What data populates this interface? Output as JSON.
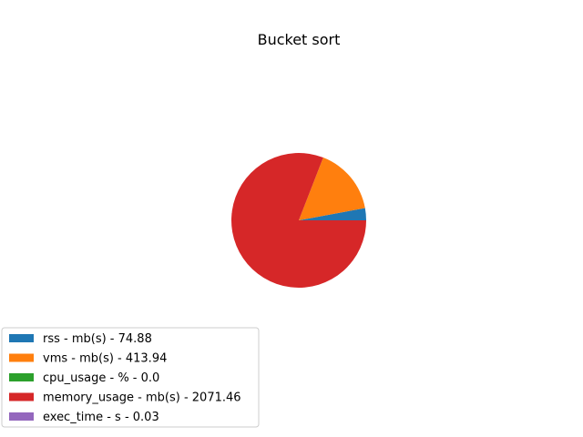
{
  "chart_data": {
    "type": "pie",
    "title": "Bucket sort",
    "slices": [
      {
        "label": "rss - mb(s) - 74.88",
        "value": 74.88,
        "color": "#1f77b4"
      },
      {
        "label": "vms - mb(s) - 413.94",
        "value": 413.94,
        "color": "#ff7f0e"
      },
      {
        "label": "cpu_usage - % - 0.0",
        "value": 0.0,
        "color": "#2ca02c"
      },
      {
        "label": "memory_usage - mb(s) - 2071.46",
        "value": 2071.46,
        "color": "#d62728"
      },
      {
        "label": "exec_time - s - 0.03",
        "value": 0.03,
        "color": "#9467bd"
      }
    ],
    "start_angle_deg": 0,
    "direction": "counterclockwise",
    "legend_placement": "lower-left"
  }
}
